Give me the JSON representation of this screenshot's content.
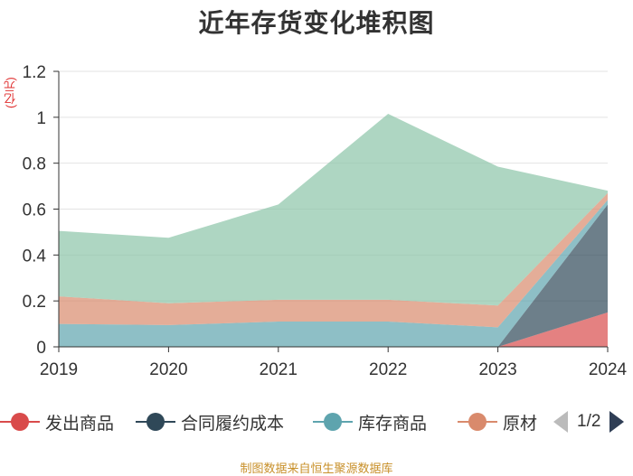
{
  "chart_data": {
    "type": "area",
    "stacked": true,
    "title": "近年存货变化堆积图",
    "unit_label": "(亿元)",
    "categories": [
      "2019",
      "2020",
      "2021",
      "2022",
      "2023",
      "2024"
    ],
    "ylim": [
      0,
      1.2
    ],
    "yticks": [
      "0",
      "0.2",
      "0.4",
      "0.6",
      "0.8",
      "1",
      "1.2"
    ],
    "grid": true,
    "legend_position": "bottom",
    "series": [
      {
        "name": "发出商品",
        "color": "#d94b4b",
        "values": [
          0,
          0,
          0,
          0,
          0,
          0.15
        ]
      },
      {
        "name": "合同履约成本",
        "color": "#2f4858",
        "values": [
          0,
          0,
          0,
          0,
          0,
          0.47
        ]
      },
      {
        "name": "库存商品",
        "color": "#5ea4ae",
        "values": [
          0.1,
          0.095,
          0.11,
          0.11,
          0.085,
          0.02
        ]
      },
      {
        "name": "原材料",
        "color": "#d98a6c",
        "values": [
          0.12,
          0.095,
          0.095,
          0.095,
          0.095,
          0.03
        ]
      },
      {
        "name": "",
        "color": "#8cc5a8",
        "values": [
          0.285,
          0.285,
          0.415,
          0.81,
          0.605,
          0.01
        ]
      }
    ]
  },
  "legend": {
    "items": [
      {
        "label": "发出商品",
        "color": "#d94b4b"
      },
      {
        "label": "合同履约成本",
        "color": "#2f4858"
      },
      {
        "label": "库存商品",
        "color": "#5ea4ae"
      },
      {
        "label": "原材",
        "color": "#d98a6c"
      }
    ],
    "page_indicator": "1/2"
  },
  "source": "制图数据来自恒生聚源数据库"
}
